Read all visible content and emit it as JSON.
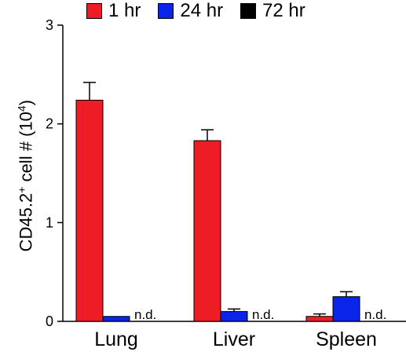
{
  "chart_data": {
    "type": "bar",
    "categories": [
      "Lung",
      "Liver",
      "Spleen"
    ],
    "series": [
      {
        "name": "1 hr",
        "color": "#ee1c25",
        "values": [
          2.24,
          1.83,
          0.05
        ],
        "errors": [
          0.18,
          0.11,
          0.025
        ]
      },
      {
        "name": "24 hr",
        "color": "#0a24e8",
        "values": [
          0.05,
          0.1,
          0.25
        ],
        "errors": [
          0.0,
          0.025,
          0.05
        ]
      },
      {
        "name": "72 hr",
        "color": "#000000",
        "values": [
          null,
          null,
          null
        ],
        "errors": [
          null,
          null,
          null
        ]
      }
    ],
    "annotations": [
      "n.d.",
      "n.d.",
      "n.d."
    ],
    "ylabel_main": "CD45.2",
    "ylabel_sup": "+",
    "ylabel_mid": " cell # (10",
    "ylabel_exp": "4",
    "ylabel_end": ")",
    "ylim": [
      0,
      3
    ],
    "yticks": [
      "0",
      "1",
      "2",
      "3"
    ],
    "grid": false,
    "legend_position": "top"
  }
}
